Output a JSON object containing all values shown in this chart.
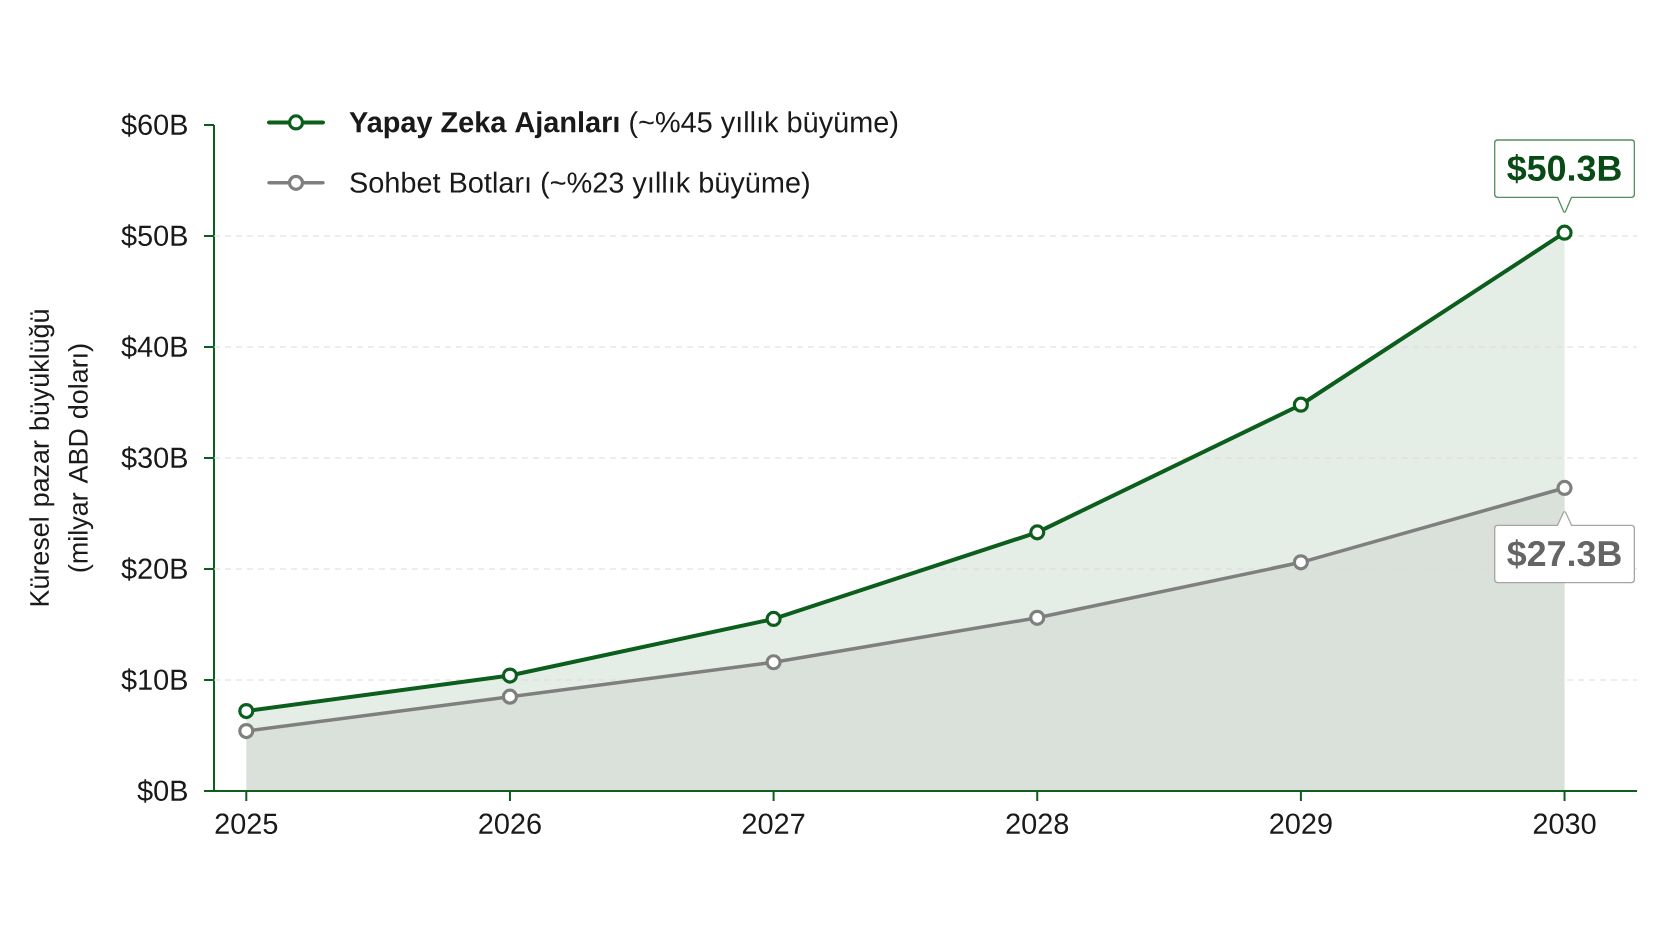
{
  "chart_data": {
    "type": "area",
    "categories": [
      "2025",
      "2026",
      "2027",
      "2028",
      "2029",
      "2030"
    ],
    "ylabel": "Küresel pazar büyüklüğü (milyar ABD doları)",
    "series": [
      {
        "name": "**Yapay Zeka Ajanları** (~%45 yıllık büyüme)",
        "color": "#0b5e1b",
        "values": [
          7.2,
          10.4,
          15.5,
          23.3,
          34.8,
          50.3
        ],
        "value_labels": [
          null,
          null,
          null,
          null,
          null,
          "$50.3B"
        ]
      },
      {
        "name": "Sohbet Botları (~%23 yıllık büyüme)",
        "color": "#7f7f7f",
        "values": [
          5.4,
          8.5,
          11.6,
          15.6,
          20.6,
          27.3
        ],
        "value_labels": [
          null,
          null,
          null,
          null,
          null,
          "$27.3B"
        ]
      }
    ],
    "ylim": [
      0,
      60
    ],
    "yticks": [
      {
        "value": 0,
        "label": "$0B"
      },
      {
        "value": 10,
        "label": "$10B"
      },
      {
        "value": 20,
        "label": "$20B"
      },
      {
        "value": 30,
        "label": "$30B"
      },
      {
        "value": 40,
        "label": "$40B"
      },
      {
        "value": 50,
        "label": "$50B"
      },
      {
        "value": 60,
        "label": "$60B"
      }
    ],
    "grid": "y",
    "legend": "top left",
    "marker": "circle",
    "line_style": "solid"
  }
}
